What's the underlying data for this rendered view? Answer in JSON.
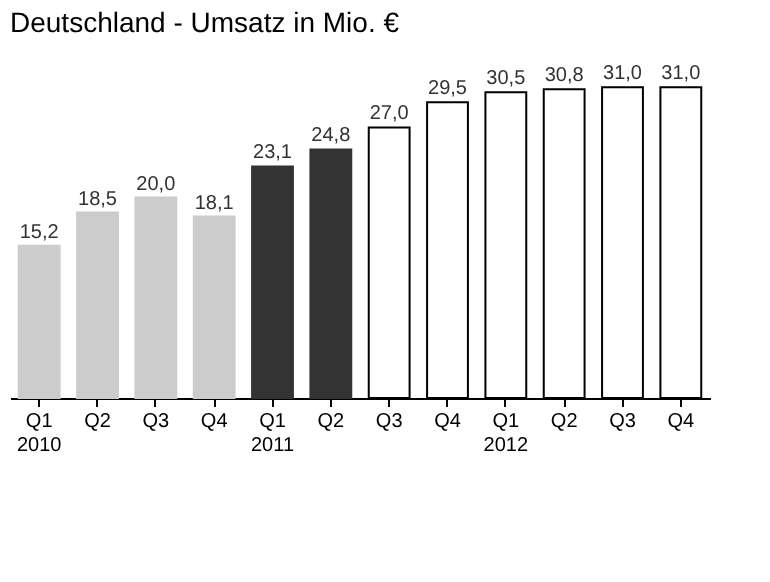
{
  "chart_data": {
    "type": "bar",
    "title": "Deutschland - Umsatz in Mio. €",
    "categories": [
      "Q1\n2010",
      "Q2",
      "Q3",
      "Q4",
      "Q1\n2011",
      "Q2",
      "Q3",
      "Q4",
      "Q1\n2012",
      "Q2",
      "Q3",
      "Q4"
    ],
    "values": [
      15.2,
      18.5,
      20.0,
      18.1,
      23.1,
      24.8,
      27.0,
      29.5,
      30.5,
      30.8,
      31.0,
      31.0
    ],
    "value_labels": [
      "15,2",
      "18,5",
      "20,0",
      "18,1",
      "23,1",
      "24,8",
      "27,0",
      "29,5",
      "30,5",
      "30,8",
      "31,0",
      "31,0"
    ],
    "colors": [
      "#cccccc",
      "#cccccc",
      "#cccccc",
      "#cccccc",
      "#333333",
      "#333333",
      "#ffffff",
      "#ffffff",
      "#ffffff",
      "#ffffff",
      "#ffffff",
      "#ffffff"
    ]
  }
}
